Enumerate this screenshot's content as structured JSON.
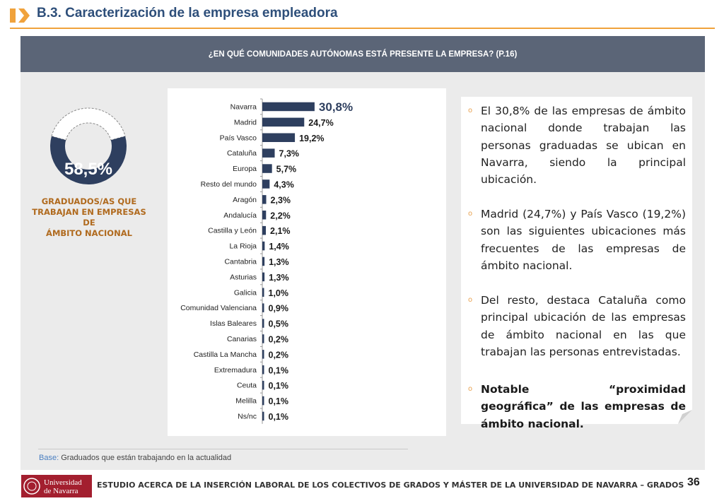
{
  "header": {
    "title": "B.3. Caracterización de la empresa empleadora"
  },
  "question_banner": "¿EN QUÉ COMUNIDADES AUTÓNOMAS ESTÁ PRESENTE LA EMPRESA? (P.16)",
  "summary": {
    "value": "58,5%",
    "fraction": 0.585,
    "caption_lines": [
      "GRADUADOS/AS QUE",
      "TRABAJAN EN EMPRESAS DE",
      "ÁMBITO NACIONAL"
    ]
  },
  "chart_data": {
    "type": "bar",
    "orientation": "horizontal",
    "categories": [
      "Navarra",
      "Madrid",
      "País Vasco",
      "Cataluña",
      "Europa",
      "Resto del mundo",
      "Aragón",
      "Andalucía",
      "Castilla y León",
      "La Rioja",
      "Cantabria",
      "Asturias",
      "Galicia",
      "Comunidad Valenciana",
      "Islas Baleares",
      "Canarias",
      "Castilla La Mancha",
      "Extremadura",
      "Ceuta",
      "Melilla",
      "Ns/nc"
    ],
    "values": [
      30.8,
      24.7,
      19.2,
      7.3,
      5.7,
      4.3,
      2.3,
      2.2,
      2.1,
      1.4,
      1.3,
      1.3,
      1.0,
      0.9,
      0.5,
      0.2,
      0.2,
      0.1,
      0.1,
      0.1,
      0.1
    ],
    "value_labels": [
      "30,8%",
      "24,7%",
      "19,2%",
      "7,3%",
      "5,7%",
      "4,3%",
      "2,3%",
      "2,2%",
      "2,1%",
      "1,4%",
      "1,3%",
      "1,3%",
      "1,0%",
      "0,9%",
      "0,5%",
      "0,2%",
      "0,2%",
      "0,1%",
      "0,1%",
      "0,1%",
      "0,1%"
    ],
    "xlim": [
      0,
      35
    ],
    "grid": false,
    "bar_color": "#2e3f5f"
  },
  "bullets": [
    {
      "text": "El 30,8% de las empresas de ámbito nacional donde trabajan las personas graduadas se ubican en Navarra, siendo la principal ubicación."
    },
    {
      "text": "Madrid (24,7%) y País Vasco (19,2%) son las siguientes ubicaciones más frecuentes de las empresas de ámbito nacional."
    },
    {
      "text": "Del resto, destaca Cataluña como principal ubicación de las empresas de ámbito nacional en las que trabajan las personas entrevistadas."
    },
    {
      "text": "Notable “proximidad geográfica” de las empresas de ámbito nacional."
    }
  ],
  "bullet_marker": "o",
  "base": {
    "label": "Base:",
    "text": "Graduados que están trabajando en la actualidad"
  },
  "footer": {
    "logo_text": "Universidad de Navarra",
    "logo_lines": [
      "Universidad",
      "de Navarra"
    ],
    "study_title": "ESTUDIO ACERCA DE LA INSERCIÓN LABORAL DE LOS COLECTIVOS DE GRADOS Y MÁSTER DE LA UNIVERSIDAD DE NAVARRA – GRADOS",
    "page_number": "36"
  },
  "colors": {
    "accent_orange": "#f0a23c",
    "title_blue": "#2e4f7a",
    "banner_gray": "#5b6577",
    "donut_navy": "#2e3f5f",
    "caption_brown": "#b06a1e",
    "brand_red": "#a31f2f"
  }
}
